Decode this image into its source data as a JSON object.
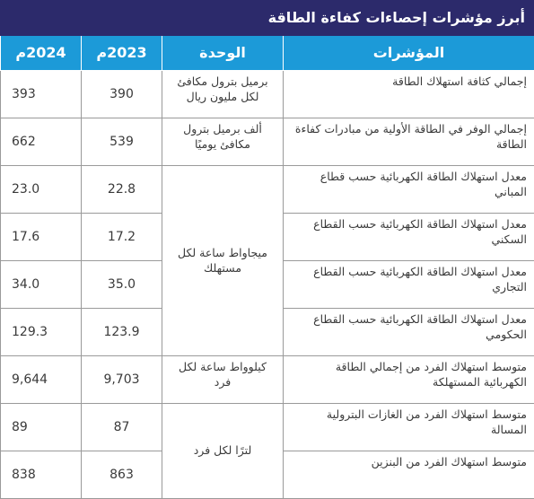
{
  "table": {
    "title": "أبرز مؤشرات إحصاءات كفاءة الطاقة",
    "headers": [
      "المؤشرات",
      "الوحدة",
      "2023م",
      "2024م"
    ],
    "rows": [
      [
        "إجمالي كثافة استهلاك الطاقة",
        "برميل بترول مكافئ لكل مليون ريال",
        "390",
        "393"
      ],
      [
        "إجمالي الوفر في الطاقة الأولية من مبادرات كفاءة الطاقة",
        "ألف برميل بترول مكافئ يوميًا",
        "539",
        "662"
      ],
      [
        "معدل استهلاك الطاقة الكهربائية حسب قطاع المباني",
        "ميجاواط ساعة لكل مستهلك",
        "22.8",
        "23.0"
      ],
      [
        "معدل استهلاك الطاقة الكهربائية حسب القطاع السكني",
        null,
        "17.2",
        "17.6"
      ],
      [
        "معدل استهلاك الطاقة الكهربائية حسب القطاع التجاري",
        null,
        "35.0",
        "34.0"
      ],
      [
        "معدل استهلاك الطاقة الكهربائية حسب القطاع الحكومي",
        null,
        "123.9",
        "129.3"
      ],
      [
        "متوسط استهلاك الفرد من إجمالي الطاقة الكهربائية المستهلكة",
        "كيلوواط ساعة لكل فرد",
        "9,703",
        "9,644"
      ],
      [
        "متوسط استهلاك الفرد من الغازات البترولية المسالة",
        "لترًا لكل فرد",
        "87",
        "89"
      ],
      [
        "متوسط استهلاك الفرد من البنزين",
        null,
        "863",
        "838"
      ]
    ]
  }
}
